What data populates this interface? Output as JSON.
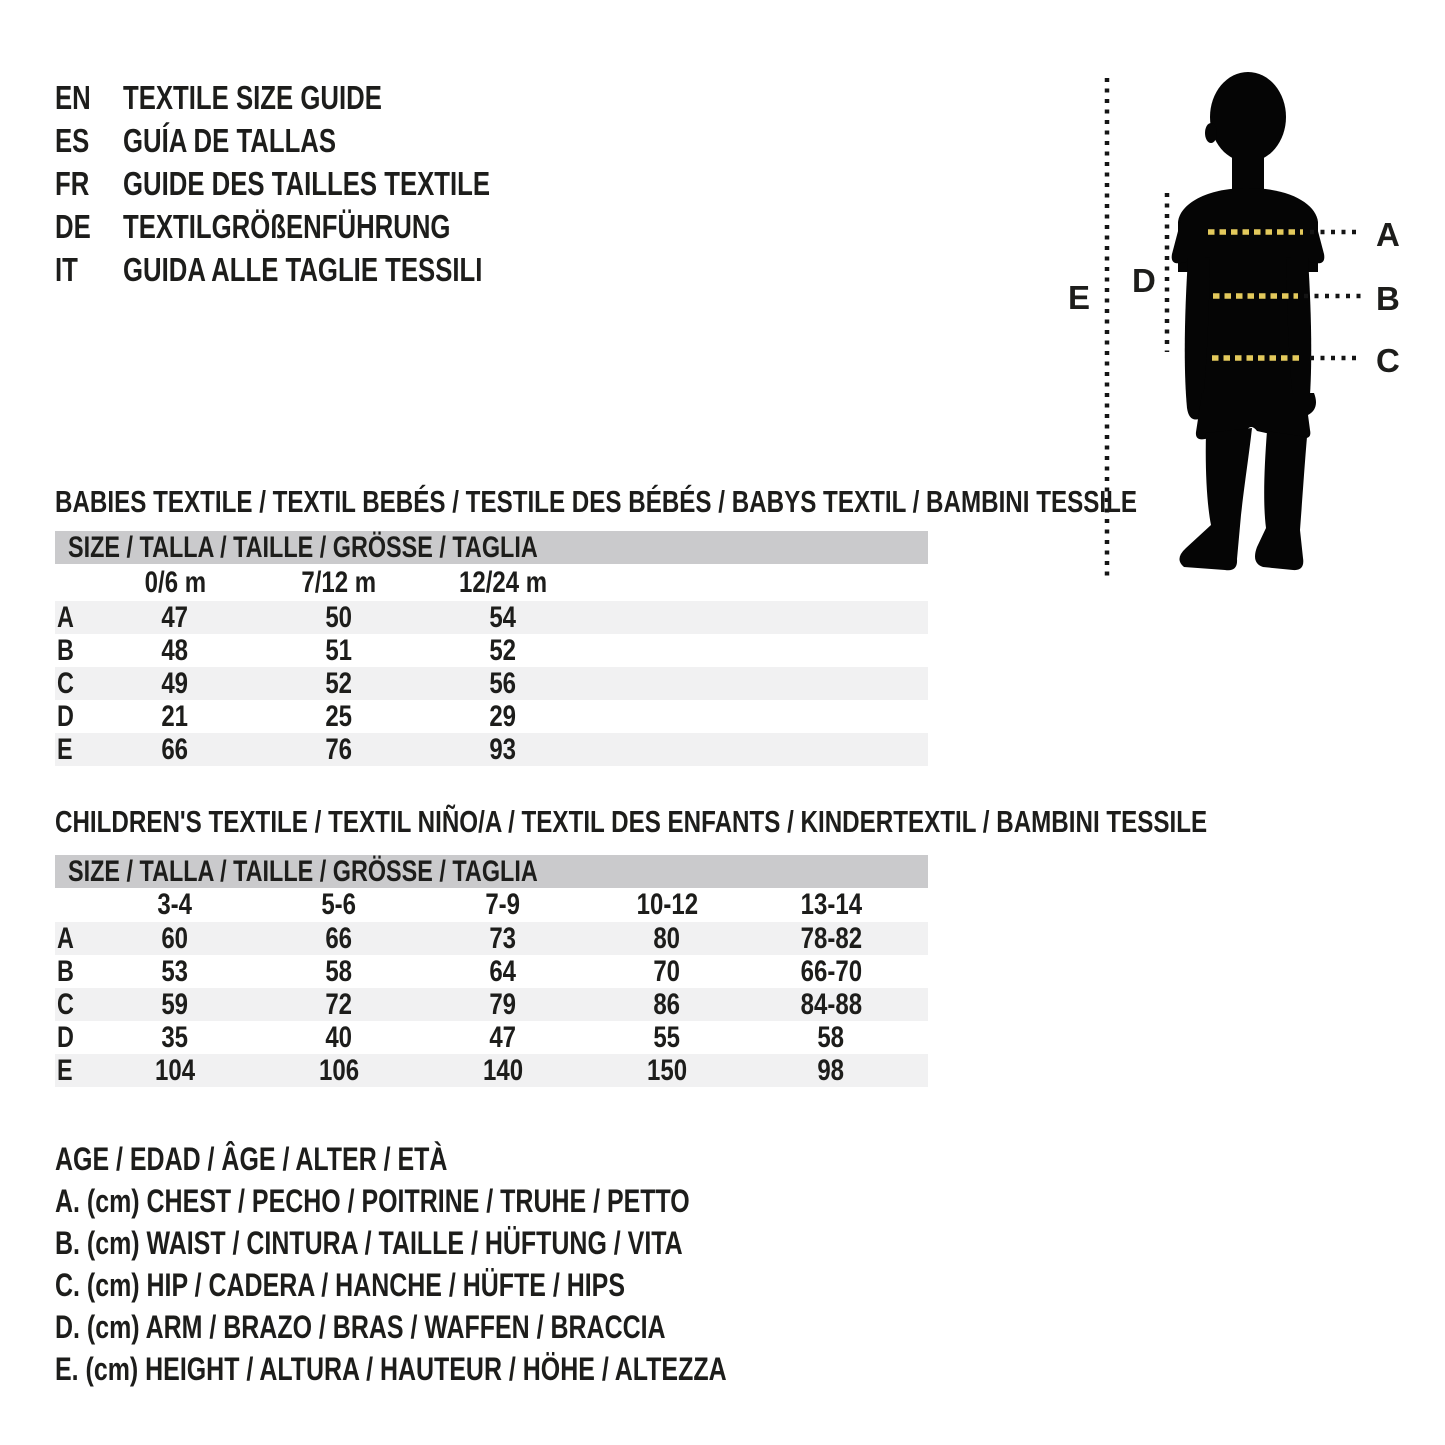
{
  "header": {
    "languages": [
      {
        "code": "EN",
        "title": "TEXTILE SIZE GUIDE"
      },
      {
        "code": "ES",
        "title": "GUÍA DE TALLAS"
      },
      {
        "code": "FR",
        "title": "GUIDE DES TAILLES TEXTILE"
      },
      {
        "code": "DE",
        "title": "TEXTILGRÖßENFÜHRUNG"
      },
      {
        "code": "IT",
        "title": "GUIDA ALLE TAGLIE TESSILI"
      }
    ]
  },
  "figure": {
    "labels": {
      "a": "A",
      "b": "B",
      "c": "C",
      "d": "D",
      "e": "E"
    },
    "colors": {
      "silhouette": "#050505",
      "measure_dash": "#e3c95c",
      "lead_dots": "#141414"
    }
  },
  "babies_table": {
    "section_title": "BABIES TEXTILE / TEXTIL BEBÉS / TESTILE DES BÉBÉS / BABYS TEXTIL / BAMBINI TESSILE",
    "size_header": "SIZE / TALLA / TAILLE / GRÖSSE / TAGLIA",
    "columns": [
      "0/6 m",
      "7/12 m",
      "12/24 m"
    ],
    "rows": [
      {
        "label": "A",
        "values": [
          "47",
          "50",
          "54"
        ]
      },
      {
        "label": "B",
        "values": [
          "48",
          "51",
          "52"
        ]
      },
      {
        "label": "C",
        "values": [
          "49",
          "52",
          "56"
        ]
      },
      {
        "label": "D",
        "values": [
          "21",
          "25",
          "29"
        ]
      },
      {
        "label": "E",
        "values": [
          "66",
          "76",
          "93"
        ]
      }
    ]
  },
  "children_table": {
    "section_title": "CHILDREN'S TEXTILE / TEXTIL NIÑO/A / TEXTIL DES ENFANTS / KINDERTEXTIL / BAMBINI TESSILE",
    "size_header": "SIZE / TALLA / TAILLE / GRÖSSE / TAGLIA",
    "columns": [
      "3-4",
      "5-6",
      "7-9",
      "10-12",
      "13-14"
    ],
    "rows": [
      {
        "label": "A",
        "values": [
          "60",
          "66",
          "73",
          "80",
          "78-82"
        ]
      },
      {
        "label": "B",
        "values": [
          "53",
          "58",
          "64",
          "70",
          "66-70"
        ]
      },
      {
        "label": "C",
        "values": [
          "59",
          "72",
          "79",
          "86",
          "84-88"
        ]
      },
      {
        "label": "D",
        "values": [
          "35",
          "40",
          "47",
          "55",
          "58"
        ]
      },
      {
        "label": "E",
        "values": [
          "104",
          "106",
          "140",
          "150",
          "98"
        ]
      }
    ]
  },
  "legend": {
    "lines": [
      "AGE / EDAD / ÂGE / ALTER / ETÀ",
      "A. (cm) CHEST / PECHO / POITRINE / TRUHE / PETTO",
      "B. (cm) WAIST / CINTURA / TAILLE / HÜFTUNG / VITA",
      "C. (cm) HIP / CADERA / HANCHE / HÜFTE / HIPS",
      "D. (cm) ARM / BRAZO / BRAS / WAFFEN / BRACCIA",
      "E. (cm) HEIGHT / ALTURA / HAUTEUR / HÖHE / ALTEZZA"
    ]
  },
  "colors": {
    "text": "#1d1d1b",
    "table_header_bg": "#cacacc",
    "row_stripe_bg": "#f1f1f2",
    "background": "#ffffff"
  }
}
